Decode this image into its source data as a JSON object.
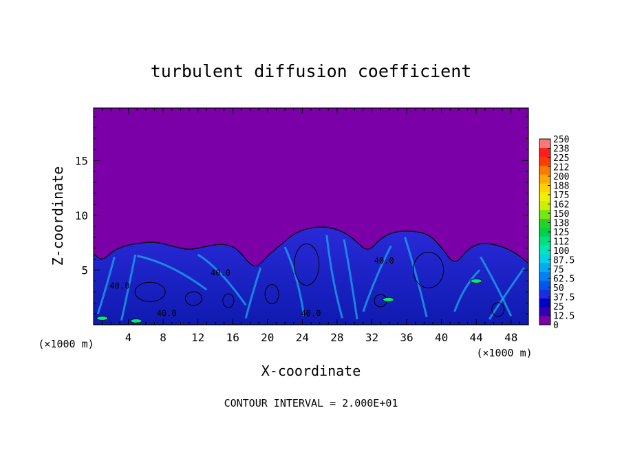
{
  "chart_data": {
    "type": "heatmap",
    "title": "turbulent diffusion coefficient",
    "xlabel": "X-coordinate",
    "ylabel": "Z-coordinate",
    "x_unit_label": "(×1000 m)",
    "y_unit_label": "(×1000 m)",
    "xlim": [
      0,
      50
    ],
    "ylim": [
      0,
      19.8
    ],
    "x_ticks": [
      4,
      8,
      12,
      16,
      20,
      24,
      28,
      32,
      36,
      40,
      44,
      48
    ],
    "y_ticks": [
      5,
      10,
      15
    ],
    "footer": "CONTOUR INTERVAL = 2.000E+01",
    "contour_interval": 20,
    "contour_labels": [
      {
        "text": "40.0",
        "x": 3.0,
        "z": 3.3
      },
      {
        "text": "40.0",
        "x": 8.4,
        "z": 0.8
      },
      {
        "text": "40.0",
        "x": 14.6,
        "z": 4.5
      },
      {
        "text": "40.0",
        "x": 25.0,
        "z": 0.8
      },
      {
        "text": "40.0",
        "x": 33.4,
        "z": 5.6
      }
    ],
    "mixing_layer_top": [
      [
        0,
        6.5
      ],
      [
        1,
        5.8
      ],
      [
        2.4,
        6.9
      ],
      [
        4.5,
        7.4
      ],
      [
        7,
        7.6
      ],
      [
        9,
        7.2
      ],
      [
        11,
        6.8
      ],
      [
        13,
        7.2
      ],
      [
        15,
        7.4
      ],
      [
        16.5,
        7.0
      ],
      [
        18.5,
        5.0
      ],
      [
        20,
        6.3
      ],
      [
        21.5,
        7.3
      ],
      [
        23,
        8.3
      ],
      [
        24.5,
        8.8
      ],
      [
        26.5,
        9.0
      ],
      [
        28.5,
        8.6
      ],
      [
        30,
        7.8
      ],
      [
        31.5,
        6.6
      ],
      [
        33,
        7.9
      ],
      [
        34.5,
        8.5
      ],
      [
        36.5,
        8.6
      ],
      [
        38.5,
        8.3
      ],
      [
        40,
        7.1
      ],
      [
        41.5,
        5.4
      ],
      [
        43,
        6.9
      ],
      [
        44.5,
        7.5
      ],
      [
        46.5,
        7.3
      ],
      [
        48.5,
        6.6
      ],
      [
        50,
        5.6
      ]
    ],
    "colorbar": {
      "labels": [
        "0",
        "12.5",
        "25",
        "37.5",
        "50",
        "62.5",
        "75",
        "87.5",
        "100",
        "112",
        "125",
        "138",
        "150",
        "162",
        "175",
        "188",
        "200",
        "212",
        "225",
        "238",
        "250"
      ],
      "colors": [
        "#7b00a8",
        "#3300b0",
        "#0000c8",
        "#1a2ee0",
        "#0055ee",
        "#0080f5",
        "#00aaf5",
        "#00d2e6",
        "#00e6b4",
        "#00e080",
        "#00d24a",
        "#28d21e",
        "#78e614",
        "#c8f000",
        "#f0f000",
        "#ffd200",
        "#ffaa00",
        "#ff7800",
        "#ff3c00",
        "#ff1e1e",
        "#ff7878"
      ]
    }
  }
}
